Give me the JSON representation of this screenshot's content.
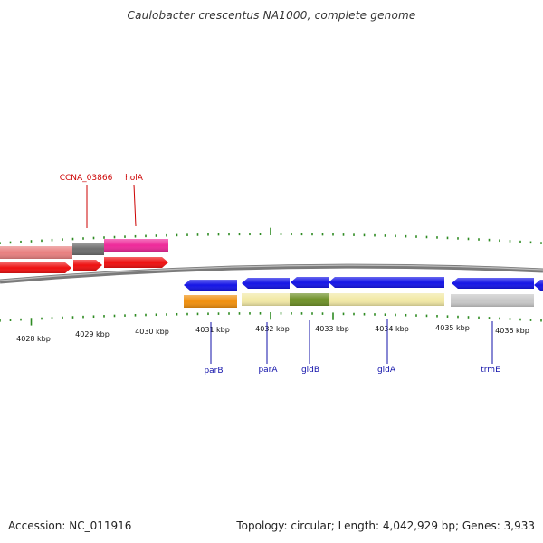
{
  "title": "Caulobacter crescentus NA1000, complete genome",
  "footer": {
    "accession": "Accession: NC_011916",
    "summary": "Topology: circular; Length: 4,042,929 bp; Genes: 3,933"
  },
  "colors": {
    "backbone": "#7a7a7a",
    "tick": "#2e8b22",
    "tick_label": "#111111",
    "label_red": "#cc0000",
    "label_blue": "#1111aa"
  },
  "scale_labels": [
    "4028 kbp",
    "4029 kbp",
    "4030 kbp",
    "4031 kbp",
    "4032 kbp",
    "4033 kbp",
    "4034 kbp",
    "4035 kbp",
    "4036 kbp"
  ],
  "upper_features": [
    {
      "id": "f1",
      "name": "",
      "color": "#e88080"
    },
    {
      "id": "f2",
      "name": "",
      "color": "#6e6e6e"
    },
    {
      "id": "f3",
      "name": "",
      "color": "#ee2a9a"
    }
  ],
  "upper_genes": [
    {
      "id": "g1",
      "name": "",
      "color": "#ee1111",
      "strand": "+"
    },
    {
      "id": "g2",
      "name": "",
      "color": "#ee1111",
      "strand": "+"
    },
    {
      "id": "g3",
      "name": "",
      "color": "#ee1111",
      "strand": "+"
    }
  ],
  "lower_genes": [
    {
      "id": "parB",
      "name": "parB",
      "color": "#1515e6",
      "strand": "-"
    },
    {
      "id": "parA",
      "name": "parA",
      "color": "#1515e6",
      "strand": "-"
    },
    {
      "id": "gidB",
      "name": "gidB",
      "color": "#1515e6",
      "strand": "-"
    },
    {
      "id": "gidA",
      "name": "gidA",
      "color": "#1515e6",
      "strand": "-"
    },
    {
      "id": "trmE",
      "name": "trmE",
      "color": "#1515e6",
      "strand": "-"
    },
    {
      "id": "edge",
      "name": "",
      "color": "#1515e6",
      "strand": "-"
    }
  ],
  "lower_features": [
    {
      "id": "lf1",
      "name": "",
      "color": "#f0900e"
    },
    {
      "id": "lf2",
      "name": "",
      "color": "#f2e9a6"
    },
    {
      "id": "lf3",
      "name": "",
      "color": "#6f9128"
    },
    {
      "id": "lf4",
      "name": "",
      "color": "#f2e9a6"
    },
    {
      "id": "lf5",
      "name": "",
      "color": "#c8c8c8"
    }
  ],
  "gene_labels": [
    {
      "text": "CCNA_03866",
      "color": "#cc0000"
    },
    {
      "text": "holA",
      "color": "#cc0000"
    },
    {
      "text": "parB",
      "color": "#1111aa"
    },
    {
      "text": "parA",
      "color": "#1111aa"
    },
    {
      "text": "gidB",
      "color": "#1111aa"
    },
    {
      "text": "gidA",
      "color": "#1111aa"
    },
    {
      "text": "trmE",
      "color": "#1111aa"
    }
  ]
}
